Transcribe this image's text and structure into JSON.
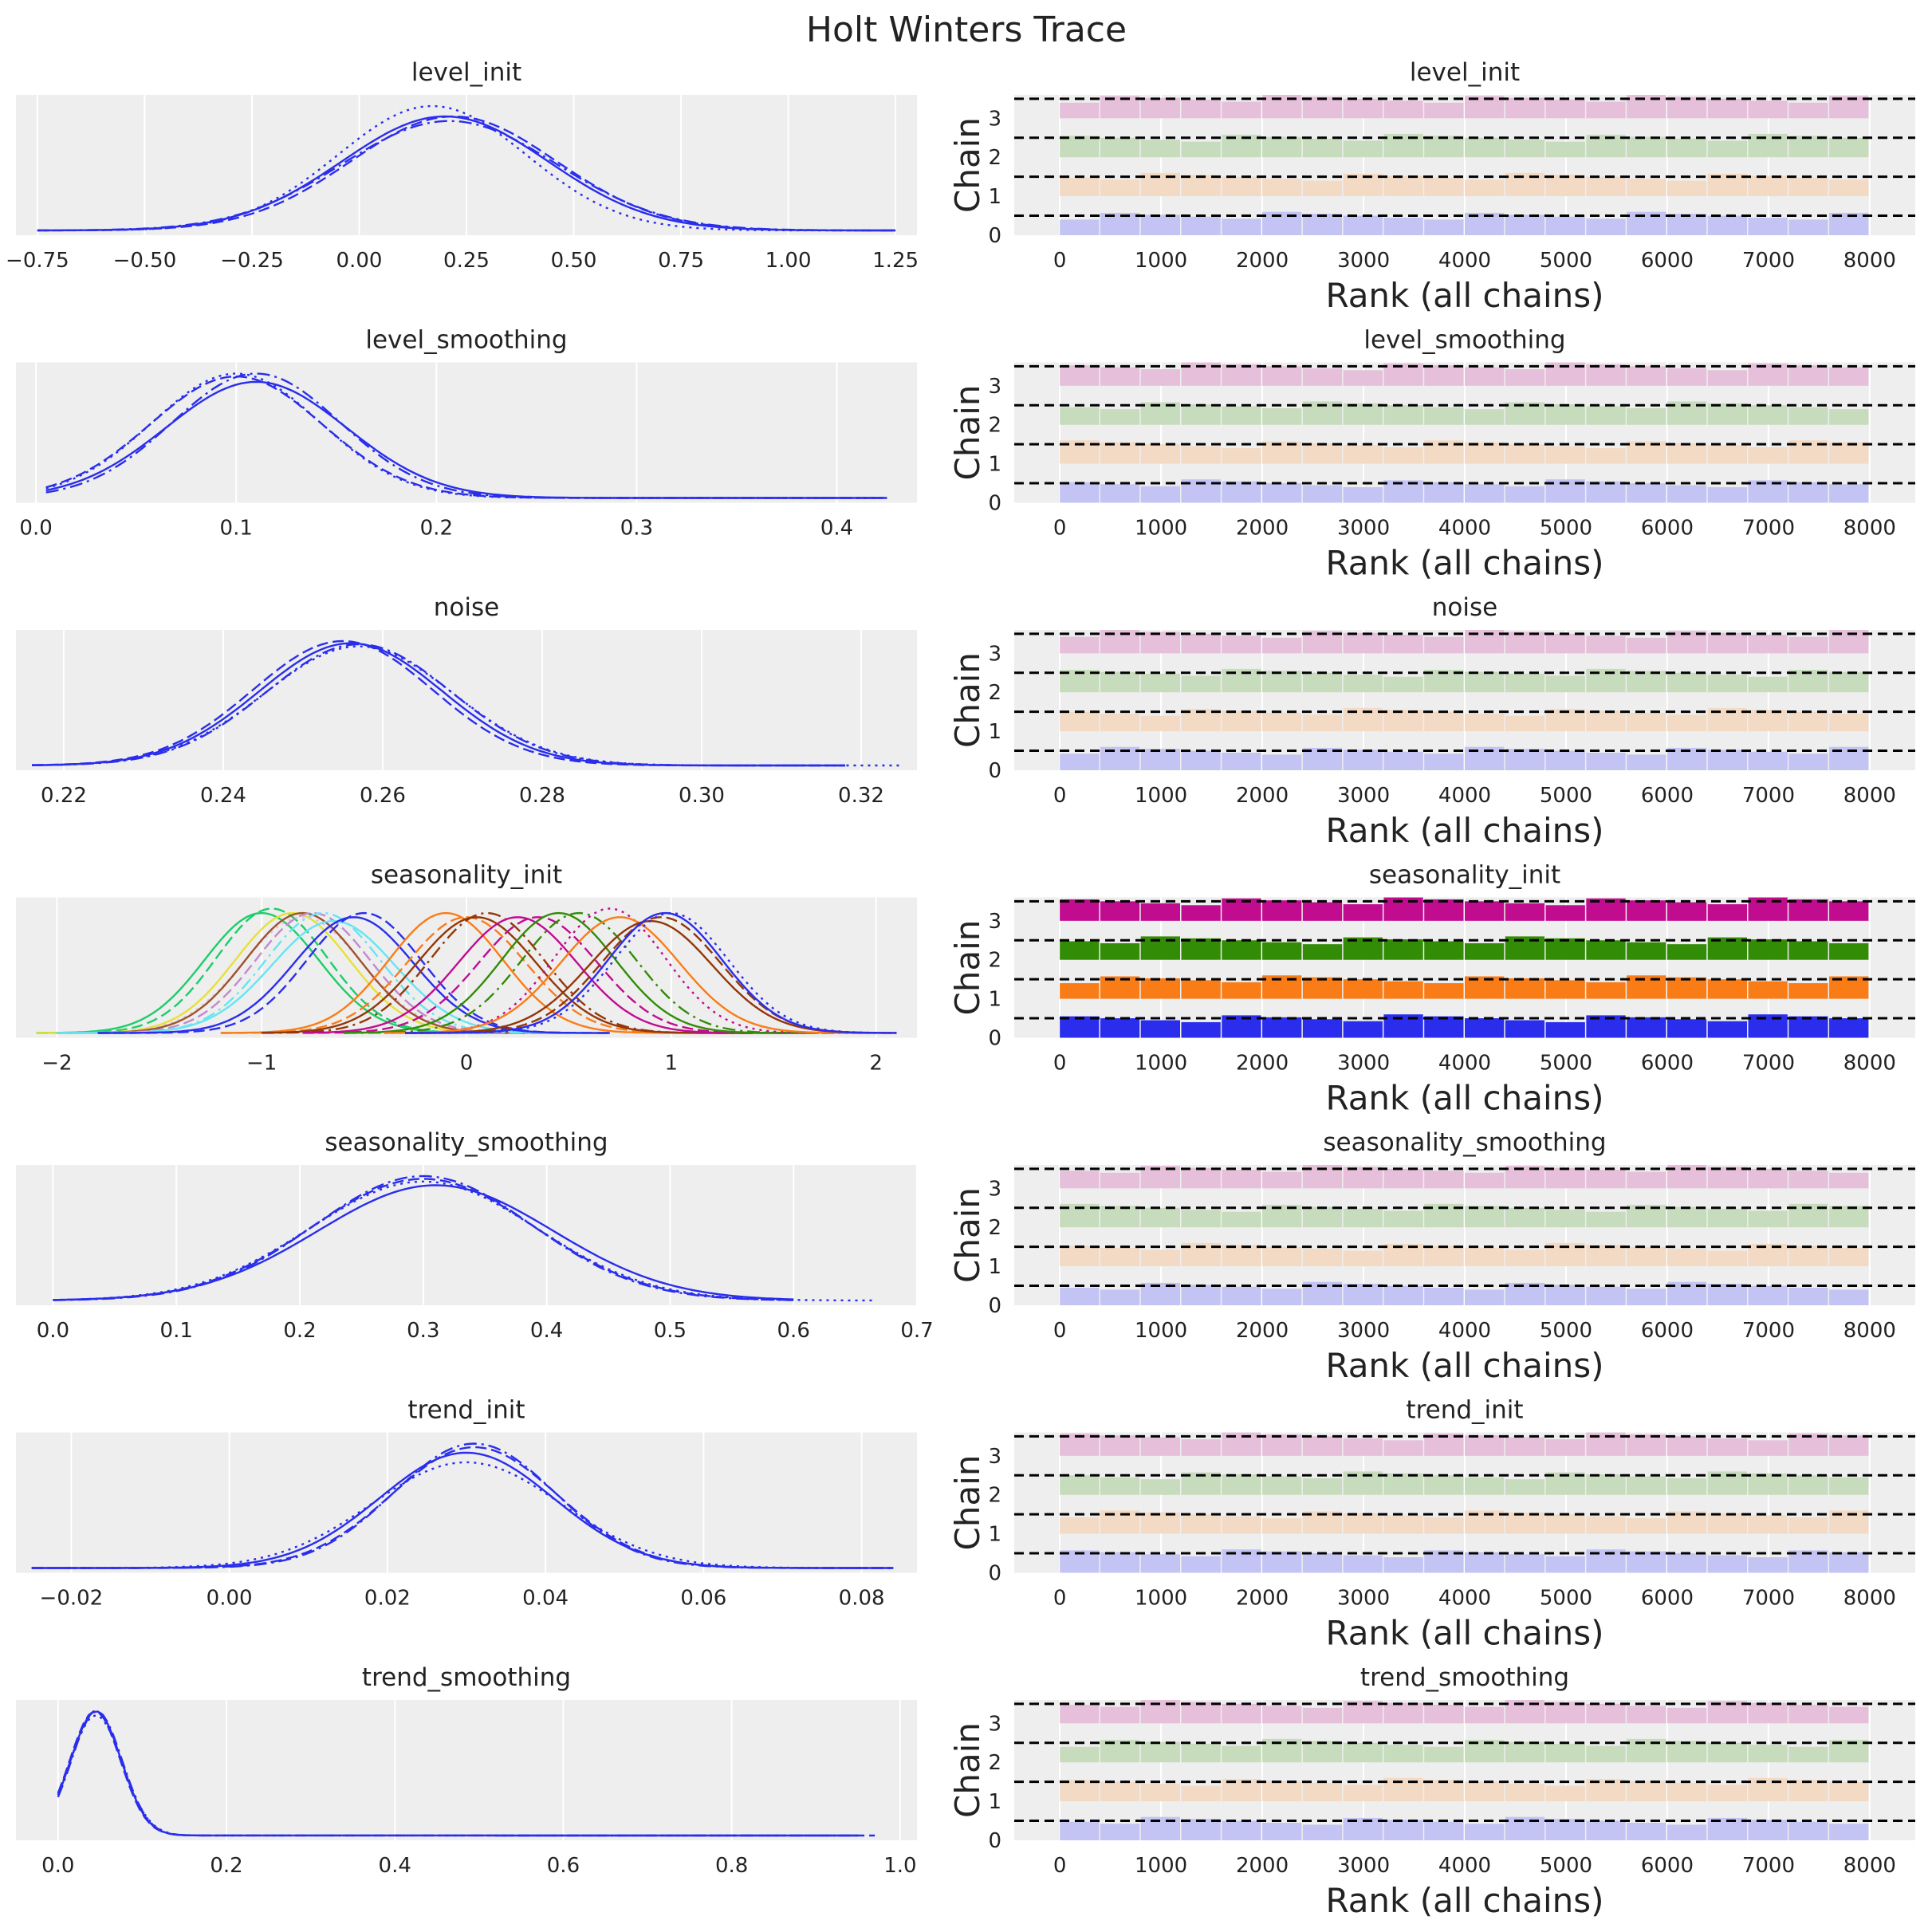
{
  "figure": {
    "title": "Holt Winters Trace"
  },
  "colors": {
    "panel_bg": "#eeeeee",
    "grid": "#ffffff",
    "chain_blue": "#2a2eec",
    "chain_orange": "#fa7c17",
    "chain_green": "#328c06",
    "chain_magenta": "#c10c90",
    "chain_dark": "#933708",
    "chain_cyan": "#65e5f3",
    "chain_tan": "#e6e135",
    "chain_teal": "#1ccd6a",
    "rank_faded": [
      "#c3c4f4",
      "#f3dac5",
      "#c6dcbc",
      "#e6c0da"
    ],
    "rank_solid": [
      "#2a2eec",
      "#fa7c17",
      "#328c06",
      "#c10c90"
    ]
  },
  "chart_data": [
    {
      "type": "line",
      "panel": "kde",
      "title": "level_init",
      "xlim": [
        -0.8,
        1.3
      ],
      "xticks": [
        "-0.75",
        "-0.50",
        "-0.25",
        "0.00",
        "0.25",
        "0.50",
        "0.75",
        "1.00",
        "1.25"
      ],
      "xtick_values": [
        -0.75,
        -0.5,
        -0.25,
        0.0,
        0.25,
        0.5,
        0.75,
        1.0,
        1.25
      ],
      "series": [
        {
          "mean": 0.2,
          "sd": 0.24,
          "start": -0.75,
          "end": 1.25,
          "style": "solid",
          "color": "#2a2eec"
        },
        {
          "mean": 0.17,
          "sd": 0.22,
          "start": -0.75,
          "end": 1.25,
          "style": "dotted",
          "color": "#2a2eec"
        },
        {
          "mean": 0.22,
          "sd": 0.24,
          "start": -0.75,
          "end": 1.25,
          "style": "dashed",
          "color": "#2a2eec"
        },
        {
          "mean": 0.21,
          "sd": 0.25,
          "start": -0.75,
          "end": 1.25,
          "style": "dashdot",
          "color": "#2a2eec"
        }
      ]
    },
    {
      "type": "line",
      "panel": "kde",
      "title": "level_smoothing",
      "xlim": [
        -0.01,
        0.44
      ],
      "xticks": [
        "0.0",
        "0.1",
        "0.2",
        "0.3",
        "0.4"
      ],
      "xtick_values": [
        0.0,
        0.1,
        0.2,
        0.3,
        0.4
      ],
      "series": [
        {
          "mean": 0.11,
          "sd": 0.045,
          "start": 0.005,
          "end": 0.425,
          "style": "solid",
          "color": "#2a2eec"
        },
        {
          "mean": 0.1,
          "sd": 0.042,
          "start": 0.005,
          "end": 0.425,
          "style": "dotted",
          "color": "#2a2eec"
        },
        {
          "mean": 0.1,
          "sd": 0.043,
          "start": 0.005,
          "end": 0.425,
          "style": "dashed",
          "color": "#2a2eec"
        },
        {
          "mean": 0.11,
          "sd": 0.042,
          "start": 0.005,
          "end": 0.425,
          "style": "dashdot",
          "color": "#2a2eec"
        }
      ]
    },
    {
      "type": "line",
      "panel": "kde",
      "title": "noise",
      "xlim": [
        0.214,
        0.327
      ],
      "xticks": [
        "0.22",
        "0.24",
        "0.26",
        "0.28",
        "0.30",
        "0.32"
      ],
      "xtick_values": [
        0.22,
        0.24,
        0.26,
        0.28,
        0.3,
        0.32
      ],
      "series": [
        {
          "mean": 0.256,
          "sd": 0.0115,
          "start": 0.216,
          "end": 0.318,
          "style": "solid",
          "color": "#2a2eec"
        },
        {
          "mean": 0.257,
          "sd": 0.0118,
          "start": 0.216,
          "end": 0.325,
          "style": "dotted",
          "color": "#2a2eec"
        },
        {
          "mean": 0.255,
          "sd": 0.0113,
          "start": 0.216,
          "end": 0.318,
          "style": "dashed",
          "color": "#2a2eec"
        },
        {
          "mean": 0.257,
          "sd": 0.0116,
          "start": 0.216,
          "end": 0.318,
          "style": "dashdot",
          "color": "#2a2eec"
        }
      ]
    },
    {
      "type": "line",
      "panel": "kde",
      "title": "seasonality_init",
      "xlim": [
        -2.2,
        2.2
      ],
      "xticks": [
        "-2",
        "-1",
        "0",
        "1",
        "2"
      ],
      "xtick_values": [
        -2,
        -1,
        0,
        1,
        2
      ],
      "series": [
        {
          "mean": -1.0,
          "sd": 0.28,
          "start": -2.1,
          "end": 0.3,
          "style": "solid",
          "color": "#1ccd6a"
        },
        {
          "mean": -0.95,
          "sd": 0.27,
          "start": -2.1,
          "end": 0.3,
          "style": "dashed",
          "color": "#1ccd6a"
        },
        {
          "mean": -0.85,
          "sd": 0.28,
          "start": -2.1,
          "end": 0.4,
          "style": "solid",
          "color": "#e6e135"
        },
        {
          "mean": -0.8,
          "sd": 0.29,
          "start": -2.0,
          "end": 0.5,
          "style": "dotted",
          "color": "#e6c0da"
        },
        {
          "mean": -0.8,
          "sd": 0.28,
          "start": -2.0,
          "end": 0.5,
          "style": "solid",
          "color": "#a0522d"
        },
        {
          "mean": -0.75,
          "sd": 0.28,
          "start": -2.0,
          "end": 0.5,
          "style": "dashed",
          "color": "#c08ad0"
        },
        {
          "mean": -0.7,
          "sd": 0.28,
          "start": -2.0,
          "end": 0.6,
          "style": "dashdot",
          "color": "#65e5f3"
        },
        {
          "mean": -0.65,
          "sd": 0.3,
          "start": -2.0,
          "end": 0.6,
          "style": "solid",
          "color": "#65e5f3"
        },
        {
          "mean": -0.55,
          "sd": 0.29,
          "start": -1.8,
          "end": 0.7,
          "style": "solid",
          "color": "#2a2eec"
        },
        {
          "mean": -0.5,
          "sd": 0.28,
          "start": -1.8,
          "end": 0.7,
          "style": "dashed",
          "color": "#2a2eec"
        },
        {
          "mean": -0.1,
          "sd": 0.28,
          "start": -1.2,
          "end": 1.3,
          "style": "solid",
          "color": "#fa7c17"
        },
        {
          "mean": 0.0,
          "sd": 0.29,
          "start": -1.2,
          "end": 1.3,
          "style": "dashed",
          "color": "#fa7c17"
        },
        {
          "mean": 0.05,
          "sd": 0.29,
          "start": -1.0,
          "end": 1.4,
          "style": "solid",
          "color": "#933708"
        },
        {
          "mean": 0.1,
          "sd": 0.28,
          "start": -1.0,
          "end": 1.4,
          "style": "dashdot",
          "color": "#933708"
        },
        {
          "mean": 0.25,
          "sd": 0.29,
          "start": -0.8,
          "end": 1.6,
          "style": "solid",
          "color": "#c10c90"
        },
        {
          "mean": 0.35,
          "sd": 0.29,
          "start": -0.8,
          "end": 1.6,
          "style": "dashed",
          "color": "#c10c90"
        },
        {
          "mean": 0.45,
          "sd": 0.28,
          "start": -0.6,
          "end": 1.7,
          "style": "solid",
          "color": "#328c06"
        },
        {
          "mean": 0.55,
          "sd": 0.28,
          "start": -0.6,
          "end": 1.8,
          "style": "dashdot",
          "color": "#328c06"
        },
        {
          "mean": 0.7,
          "sd": 0.27,
          "start": -0.4,
          "end": 2.0,
          "style": "dotted",
          "color": "#c10c90"
        },
        {
          "mean": 0.75,
          "sd": 0.29,
          "start": -0.4,
          "end": 2.0,
          "style": "solid",
          "color": "#fa7c17"
        },
        {
          "mean": 0.9,
          "sd": 0.3,
          "start": -0.3,
          "end": 2.1,
          "style": "solid",
          "color": "#933708"
        },
        {
          "mean": 0.95,
          "sd": 0.29,
          "start": -0.3,
          "end": 2.1,
          "style": "dashed",
          "color": "#933708"
        },
        {
          "mean": 0.97,
          "sd": 0.28,
          "start": -0.3,
          "end": 2.1,
          "style": "solid",
          "color": "#2a2eec"
        },
        {
          "mean": 1.0,
          "sd": 0.28,
          "start": -0.3,
          "end": 2.1,
          "style": "dotted",
          "color": "#2a2eec"
        }
      ]
    },
    {
      "type": "line",
      "panel": "kde",
      "title": "seasonality_smoothing",
      "xlim": [
        -0.03,
        0.7
      ],
      "xticks": [
        "0.0",
        "0.1",
        "0.2",
        "0.3",
        "0.4",
        "0.5",
        "0.6",
        "0.7"
      ],
      "xtick_values": [
        0.0,
        0.1,
        0.2,
        0.3,
        0.4,
        0.5,
        0.6,
        0.7
      ],
      "series": [
        {
          "mean": 0.31,
          "sd": 0.095,
          "start": 0.0,
          "end": 0.6,
          "style": "solid",
          "color": "#2a2eec"
        },
        {
          "mean": 0.3,
          "sd": 0.092,
          "start": 0.0,
          "end": 0.665,
          "style": "dotted",
          "color": "#2a2eec"
        },
        {
          "mean": 0.3,
          "sd": 0.09,
          "start": 0.0,
          "end": 0.6,
          "style": "dashed",
          "color": "#2a2eec"
        },
        {
          "mean": 0.3,
          "sd": 0.088,
          "start": 0.0,
          "end": 0.6,
          "style": "dashdot",
          "color": "#2a2eec"
        }
      ]
    },
    {
      "type": "line",
      "panel": "kde",
      "title": "trend_init",
      "xlim": [
        -0.027,
        0.087
      ],
      "xticks": [
        "-0.02",
        "0.00",
        "0.02",
        "0.04",
        "0.06",
        "0.08"
      ],
      "xtick_values": [
        -0.02,
        0.0,
        0.02,
        0.04,
        0.06,
        0.08
      ],
      "series": [
        {
          "mean": 0.03,
          "sd": 0.011,
          "start": -0.025,
          "end": 0.084,
          "style": "solid",
          "color": "#2a2eec"
        },
        {
          "mean": 0.03,
          "sd": 0.012,
          "start": -0.025,
          "end": 0.084,
          "style": "dotted",
          "color": "#2a2eec"
        },
        {
          "mean": 0.031,
          "sd": 0.0105,
          "start": -0.025,
          "end": 0.084,
          "style": "dashed",
          "color": "#2a2eec"
        },
        {
          "mean": 0.031,
          "sd": 0.0102,
          "start": -0.025,
          "end": 0.084,
          "style": "dashdot",
          "color": "#2a2eec"
        }
      ]
    },
    {
      "type": "line",
      "panel": "kde",
      "title": "trend_smoothing",
      "xlim": [
        -0.05,
        1.02
      ],
      "xticks": [
        "0.0",
        "0.2",
        "0.4",
        "0.6",
        "0.8",
        "1.0"
      ],
      "xtick_values": [
        0.0,
        0.2,
        0.4,
        0.6,
        0.8,
        1.0
      ],
      "series": [
        {
          "mean": 0.045,
          "sd": 0.03,
          "start": 0.0,
          "end": 0.95,
          "style": "solid",
          "color": "#2a2eec",
          "tail": 0.012
        },
        {
          "mean": 0.045,
          "sd": 0.031,
          "start": 0.0,
          "end": 0.95,
          "style": "dotted",
          "color": "#2a2eec",
          "tail": 0.012
        },
        {
          "mean": 0.044,
          "sd": 0.03,
          "start": 0.0,
          "end": 0.97,
          "style": "dashed",
          "color": "#2a2eec",
          "tail": 0.012
        },
        {
          "mean": 0.046,
          "sd": 0.03,
          "start": 0.0,
          "end": 0.95,
          "style": "dashdot",
          "color": "#2a2eec",
          "tail": 0.012
        }
      ]
    },
    {
      "type": "bar",
      "panel": "rank",
      "title": "level_init",
      "xlabel": "Rank (all chains)",
      "ylabel": "Chain",
      "xlim": [
        -450,
        8450
      ],
      "xticks": [
        "0",
        "1000",
        "2000",
        "3000",
        "4000",
        "5000",
        "6000",
        "7000",
        "8000"
      ],
      "xtick_values": [
        0,
        1000,
        2000,
        3000,
        4000,
        5000,
        6000,
        7000,
        8000
      ],
      "yticks": [
        "0",
        "1",
        "2",
        "3"
      ],
      "chains": [
        0,
        1,
        2,
        3
      ],
      "ylim": [
        0,
        3.6
      ],
      "bins": 20,
      "style": "faded"
    },
    {
      "type": "bar",
      "panel": "rank",
      "title": "level_smoothing",
      "xlabel": "Rank (all chains)",
      "ylabel": "Chain",
      "xlim": [
        -450,
        8450
      ],
      "xticks": [
        "0",
        "1000",
        "2000",
        "3000",
        "4000",
        "5000",
        "6000",
        "7000",
        "8000"
      ],
      "xtick_values": [
        0,
        1000,
        2000,
        3000,
        4000,
        5000,
        6000,
        7000,
        8000
      ],
      "yticks": [
        "0",
        "1",
        "2",
        "3"
      ],
      "chains": [
        0,
        1,
        2,
        3
      ],
      "ylim": [
        0,
        3.6
      ],
      "bins": 20,
      "style": "faded"
    },
    {
      "type": "bar",
      "panel": "rank",
      "title": "noise",
      "xlabel": "Rank (all chains)",
      "ylabel": "Chain",
      "xlim": [
        -450,
        8450
      ],
      "xticks": [
        "0",
        "1000",
        "2000",
        "3000",
        "4000",
        "5000",
        "6000",
        "7000",
        "8000"
      ],
      "xtick_values": [
        0,
        1000,
        2000,
        3000,
        4000,
        5000,
        6000,
        7000,
        8000
      ],
      "yticks": [
        "0",
        "1",
        "2",
        "3"
      ],
      "chains": [
        0,
        1,
        2,
        3
      ],
      "ylim": [
        0,
        3.6
      ],
      "bins": 20,
      "style": "faded"
    },
    {
      "type": "bar",
      "panel": "rank",
      "title": "seasonality_init",
      "xlabel": "Rank (all chains)",
      "ylabel": "Chain",
      "xlim": [
        -450,
        8450
      ],
      "xticks": [
        "0",
        "1000",
        "2000",
        "3000",
        "4000",
        "5000",
        "6000",
        "7000",
        "8000"
      ],
      "xtick_values": [
        0,
        1000,
        2000,
        3000,
        4000,
        5000,
        6000,
        7000,
        8000
      ],
      "yticks": [
        "0",
        "1",
        "2",
        "3"
      ],
      "chains": [
        0,
        1,
        2,
        3
      ],
      "ylim": [
        0,
        3.6
      ],
      "bins": 20,
      "style": "solid"
    },
    {
      "type": "bar",
      "panel": "rank",
      "title": "seasonality_smoothing",
      "xlabel": "Rank (all chains)",
      "ylabel": "Chain",
      "xlim": [
        -450,
        8450
      ],
      "xticks": [
        "0",
        "1000",
        "2000",
        "3000",
        "4000",
        "5000",
        "6000",
        "7000",
        "8000"
      ],
      "xtick_values": [
        0,
        1000,
        2000,
        3000,
        4000,
        5000,
        6000,
        7000,
        8000
      ],
      "yticks": [
        "0",
        "1",
        "2",
        "3"
      ],
      "chains": [
        0,
        1,
        2,
        3
      ],
      "ylim": [
        0,
        3.6
      ],
      "bins": 20,
      "style": "faded"
    },
    {
      "type": "bar",
      "panel": "rank",
      "title": "trend_init",
      "xlabel": "Rank (all chains)",
      "ylabel": "Chain",
      "xlim": [
        -450,
        8450
      ],
      "xticks": [
        "0",
        "1000",
        "2000",
        "3000",
        "4000",
        "5000",
        "6000",
        "7000",
        "8000"
      ],
      "xtick_values": [
        0,
        1000,
        2000,
        3000,
        4000,
        5000,
        6000,
        7000,
        8000
      ],
      "yticks": [
        "0",
        "1",
        "2",
        "3"
      ],
      "chains": [
        0,
        1,
        2,
        3
      ],
      "ylim": [
        0,
        3.6
      ],
      "bins": 20,
      "style": "faded"
    },
    {
      "type": "bar",
      "panel": "rank",
      "title": "trend_smoothing",
      "xlabel": "Rank (all chains)",
      "ylabel": "Chain",
      "xlim": [
        -450,
        8450
      ],
      "xticks": [
        "0",
        "1000",
        "2000",
        "3000",
        "4000",
        "5000",
        "6000",
        "7000",
        "8000"
      ],
      "xtick_values": [
        0,
        1000,
        2000,
        3000,
        4000,
        5000,
        6000,
        7000,
        8000
      ],
      "yticks": [
        "0",
        "1",
        "2",
        "3"
      ],
      "chains": [
        0,
        1,
        2,
        3
      ],
      "ylim": [
        0,
        3.6
      ],
      "bins": 20,
      "style": "faded"
    }
  ]
}
